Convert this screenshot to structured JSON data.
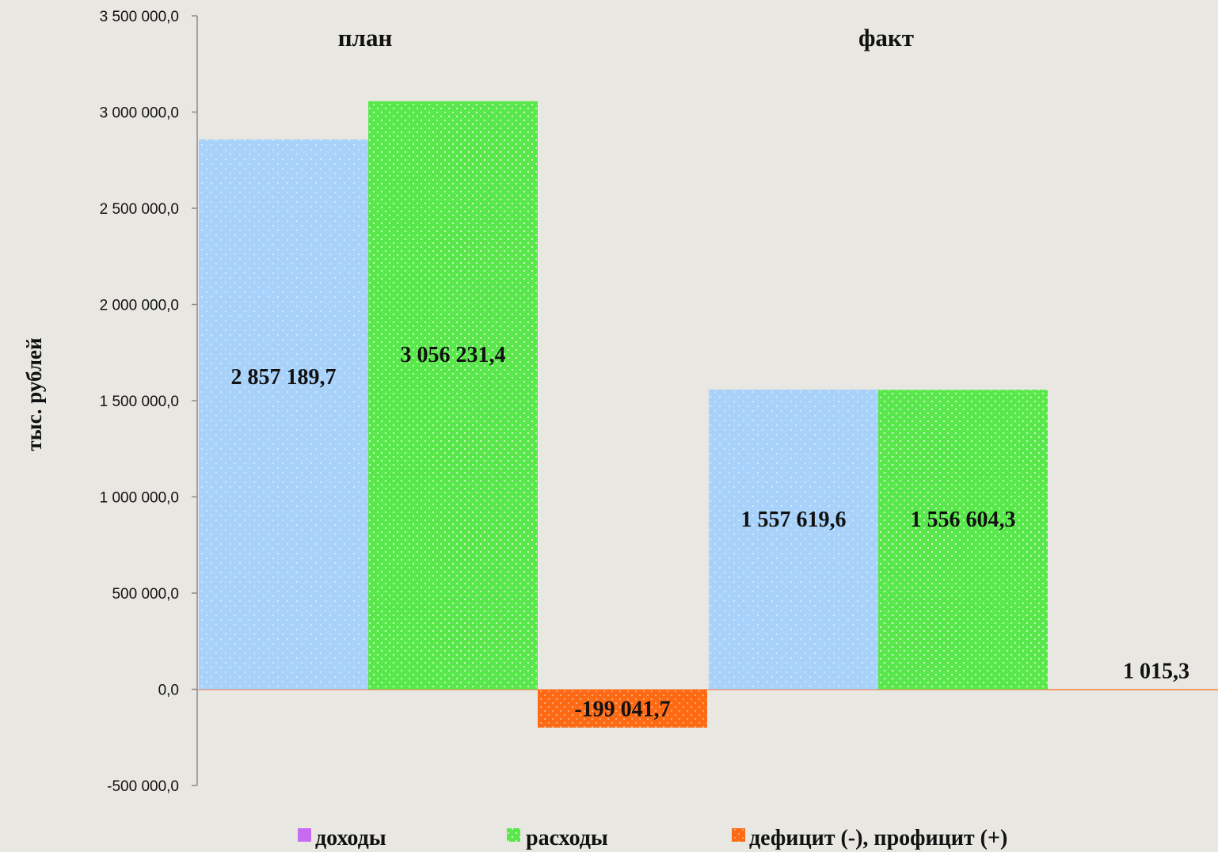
{
  "colors": {
    "income": "#a9d2fb",
    "expense": "#58e84b",
    "balance": "#fd6a13",
    "legend_income": "#c86bf3",
    "axis": "#8a8a8a",
    "zero_line": "#f07a4a",
    "background": "#e9e7e2"
  },
  "chart_data": {
    "type": "bar",
    "categories": [
      "план",
      "факт"
    ],
    "series": [
      {
        "name": "доходы",
        "values": [
          2857189.7,
          1557619.6
        ]
      },
      {
        "name": "расходы",
        "values": [
          3056231.4,
          1556604.3
        ]
      },
      {
        "name": "дефицит (-), профицит (+)",
        "values": [
          -199041.7,
          1015.3
        ]
      }
    ],
    "data_labels": [
      [
        "2 857 189,7",
        "1 557 619,6"
      ],
      [
        "3 056 231,4",
        "1 556 604,3"
      ],
      [
        "-199 041,7",
        "1 015,3"
      ]
    ],
    "ylabel": "тыс. рублей",
    "ylim": [
      -500000,
      3500000
    ],
    "y_ticks": [
      {
        "value": 3500000,
        "label": "3 500 000,0"
      },
      {
        "value": 3000000,
        "label": "3 000 000,0"
      },
      {
        "value": 2500000,
        "label": "2 500 000,0"
      },
      {
        "value": 2000000,
        "label": "2 000 000,0"
      },
      {
        "value": 1500000,
        "label": "1 500 000,0"
      },
      {
        "value": 1000000,
        "label": "1 000 000,0"
      },
      {
        "value": 500000,
        "label": "500 000,0"
      },
      {
        "value": 0,
        "label": "0,0"
      },
      {
        "value": -500000,
        "label": "-500 000,0"
      }
    ],
    "grid": false,
    "legend_position": "bottom"
  }
}
